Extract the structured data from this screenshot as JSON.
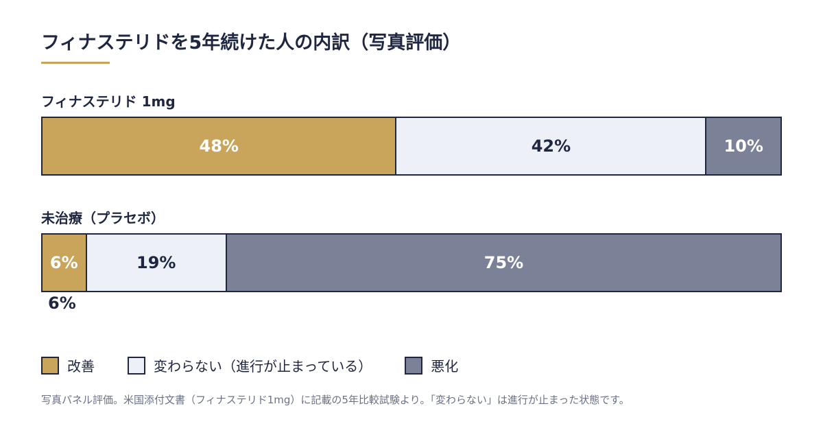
{
  "colors": {
    "improved": "#c9a55b",
    "unchanged": "#eef0f7",
    "worsened": "#7b8196",
    "text_dark": "#1f2740",
    "text_light": "#ffffff"
  },
  "chart_data": {
    "type": "bar",
    "orientation": "horizontal-stacked-100",
    "title": "フィナステリドを5年続けた人の内訳（写真評価）",
    "categories": [
      "フィナステリド 1mg",
      "未治療（プラセボ）"
    ],
    "series": [
      {
        "name": "改善",
        "values": [
          48,
          6
        ]
      },
      {
        "name": "変わらない（進行が止まっている）",
        "values": [
          42,
          19
        ]
      },
      {
        "name": "悪化",
        "values": [
          10,
          75
        ]
      }
    ],
    "value_labels": [
      [
        "48%",
        "42%",
        "10%"
      ],
      [
        "6%",
        "19%",
        "75%"
      ]
    ],
    "outside_label": "6%",
    "unit": "%",
    "xlim": [
      0,
      100
    ],
    "legend_position": "bottom",
    "footnote": "写真パネル評価。米国添付文書（フィナステリド1mg）に記載の5年比較試験より。「変わらない」は進行が止まった状態です。"
  }
}
